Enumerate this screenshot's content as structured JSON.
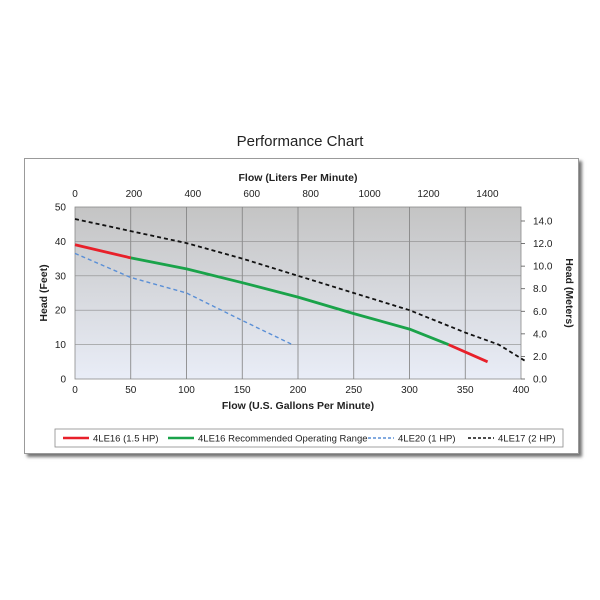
{
  "chart_title": "Performance Chart",
  "chart_data": {
    "type": "line",
    "title": "Performance Chart",
    "xlabel": "Flow (U.S. Gallons Per Minute)",
    "x2label": "Flow (Liters Per Minute)",
    "ylabel": "Head (Feet)",
    "y2label": "Head (Meters)",
    "xlim": [
      0,
      400
    ],
    "ylim": [
      0,
      50
    ],
    "x2lim": [
      0,
      1514
    ],
    "y2lim": [
      0,
      15.24
    ],
    "x_ticks": [
      "0",
      "50",
      "100",
      "150",
      "200",
      "250",
      "300",
      "350",
      "400"
    ],
    "y_ticks": [
      "0",
      "10",
      "20",
      "30",
      "40",
      "50"
    ],
    "x2_ticks": [
      "0",
      "200",
      "400",
      "600",
      "800",
      "1000",
      "1200",
      "1400"
    ],
    "y2_ticks": [
      "0.0",
      "2.0",
      "4.0",
      "6.0",
      "8.0",
      "10.0",
      "12.0",
      "14.0"
    ],
    "grid": true,
    "legend_position": "bottom",
    "series": [
      {
        "name": "4LE16 (1.5 HP)",
        "color": "#e8202a",
        "style": "solid",
        "x": [
          0,
          50
        ],
        "y": [
          39,
          35.2
        ]
      },
      {
        "name": "4LE16 (1.5 HP)",
        "color": "#e8202a",
        "style": "solid",
        "legend": false,
        "x": [
          335,
          370
        ],
        "y": [
          10,
          5
        ]
      },
      {
        "name": "4LE16 Recommended Operating Range",
        "color": "#1aa34a",
        "style": "solid",
        "x": [
          50,
          100,
          150,
          200,
          250,
          300,
          335
        ],
        "y": [
          35.2,
          32,
          28,
          23.8,
          19,
          14.5,
          10
        ]
      },
      {
        "name": "4LE20 (1 HP)",
        "color": "#5a8fd6",
        "style": "dashed",
        "x": [
          0,
          50,
          100,
          150,
          195
        ],
        "y": [
          36.5,
          29.5,
          25,
          17,
          10
        ]
      },
      {
        "name": "4LE17 (2 HP)",
        "color": "#111111",
        "style": "dashed",
        "x": [
          0,
          50,
          100,
          150,
          200,
          250,
          300,
          350,
          380,
          405
        ],
        "y": [
          46.5,
          43,
          39.5,
          35,
          30,
          25,
          20,
          13.5,
          10,
          5
        ]
      }
    ]
  }
}
